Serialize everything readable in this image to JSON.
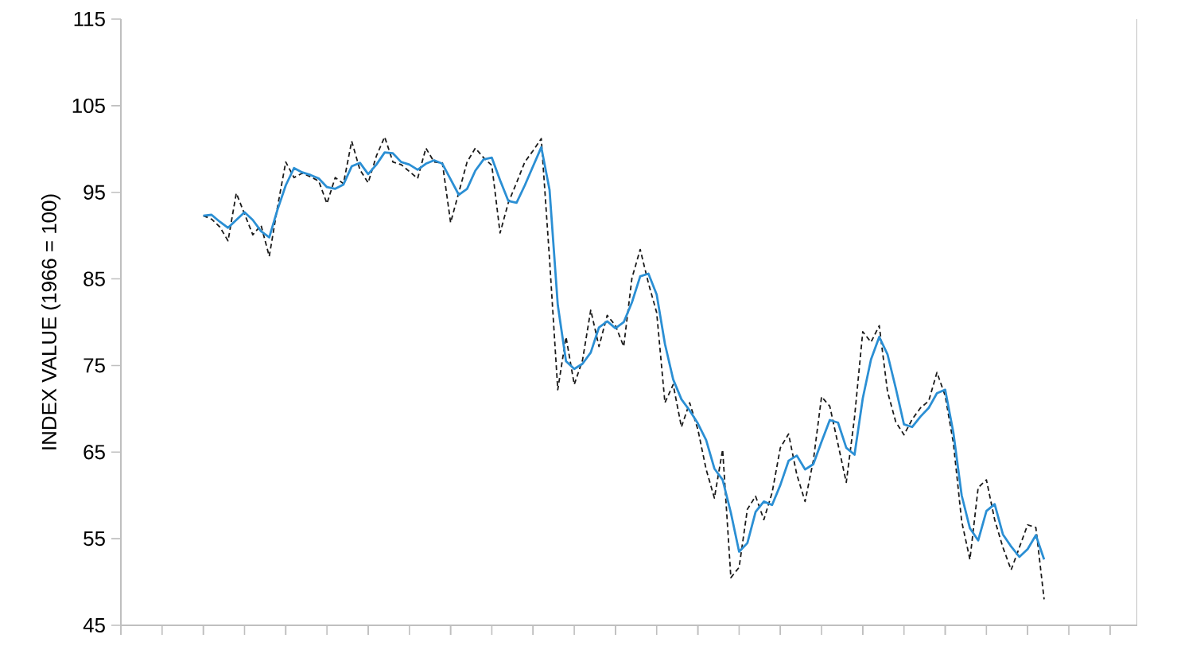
{
  "chart_data": {
    "type": "line",
    "ylabel": "INDEX VALUE (1966 = 100)",
    "ylim": [
      45,
      115
    ],
    "yticks": [
      45,
      55,
      65,
      75,
      85,
      95,
      105,
      115
    ],
    "categories": [
      null,
      null,
      null,
      null,
      null,
      null,
      null,
      null,
      null,
      null,
      null,
      null,
      null,
      null,
      null,
      null,
      null,
      null,
      null,
      null,
      null,
      null,
      null,
      null,
      null,
      null,
      null,
      null,
      null,
      null,
      null,
      null,
      null,
      null,
      null,
      null,
      null,
      null,
      null,
      null,
      null,
      null,
      null,
      null,
      null,
      null,
      null,
      null,
      null,
      null,
      null,
      null,
      null,
      null,
      null,
      null,
      null,
      null,
      null,
      null,
      null,
      null,
      null,
      null,
      null,
      null,
      null,
      null,
      null,
      null,
      null,
      null,
      null,
      null,
      null,
      null,
      null,
      null,
      null,
      null,
      null,
      null,
      null,
      null,
      null,
      null,
      null,
      null,
      null,
      null,
      null,
      null,
      null,
      null,
      null,
      null,
      null,
      null,
      null,
      null,
      null,
      null,
      null
    ],
    "grid": false,
    "series": [
      {
        "color": "#1a1a1a",
        "line_style": "dashed",
        "values": [
          92.3,
          91.9,
          91.0,
          89.4,
          94.9,
          92.5,
          90.1,
          91.2,
          87.6,
          93.3,
          98.5,
          96.7,
          97.2,
          96.8,
          96.3,
          93.7,
          96.7,
          96.0,
          100.9,
          97.6,
          96.1,
          99.2,
          101.4,
          98.5,
          98.2,
          97.4,
          96.6,
          100.1,
          98.5,
          98.4,
          91.5,
          95.0,
          98.5,
          100.1,
          99.0,
          98.1,
          90.3,
          93.8,
          96.1,
          98.5,
          99.8,
          101.2,
          87.3,
          72.2,
          78.3,
          72.8,
          75.6,
          81.4,
          77.2,
          80.8,
          79.6,
          77.2,
          85.1,
          88.4,
          84.5,
          81.1,
          70.7,
          72.8,
          67.9,
          70.7,
          67.6,
          63.0,
          59.7,
          65.3,
          50.5,
          51.7,
          58.4,
          59.9,
          57.2,
          60.3,
          65.5,
          67.1,
          62.4,
          59.3,
          64.0,
          71.4,
          70.3,
          65.9,
          61.5,
          69.0,
          78.9,
          77.7,
          79.6,
          72.0,
          68.5,
          67.0,
          68.8,
          70.1,
          70.9,
          74.2,
          71.5,
          66.0,
          57.0,
          52.6,
          60.9,
          61.8,
          57.2,
          54.0,
          51.4,
          54.0,
          56.6,
          56.3,
          48.0
        ]
      },
      {
        "color": "#2b8fd4",
        "line_style": "solid",
        "values": [
          92.3,
          92.4,
          91.6,
          90.9,
          91.8,
          92.7,
          91.8,
          90.5,
          89.8,
          93.0,
          95.8,
          97.8,
          97.3,
          97.0,
          96.6,
          95.6,
          95.4,
          95.9,
          98.0,
          98.4,
          97.1,
          98.2,
          99.6,
          99.5,
          98.5,
          98.2,
          97.6,
          98.3,
          98.7,
          98.3,
          96.5,
          94.7,
          95.4,
          97.5,
          98.8,
          99.0,
          96.4,
          94.0,
          93.8,
          95.8,
          98.0,
          100.2,
          95.3,
          82.0,
          75.5,
          74.6,
          75.2,
          76.5,
          79.4,
          80.1,
          79.3,
          80.0,
          82.3,
          85.3,
          85.6,
          83.2,
          77.5,
          73.4,
          71.1,
          69.8,
          68.3,
          66.4,
          63.1,
          61.8,
          58.0,
          53.5,
          54.5,
          58.1,
          59.3,
          58.9,
          61.2,
          64.0,
          64.6,
          63.0,
          63.6,
          66.2,
          68.7,
          68.4,
          65.5,
          64.7,
          71.2,
          75.7,
          78.3,
          76.3,
          72.4,
          68.2,
          67.9,
          69.1,
          70.1,
          71.8,
          72.2,
          67.2,
          60.0,
          56.2,
          54.8,
          58.2,
          59.0,
          55.5,
          54.1,
          52.9,
          53.8,
          55.4,
          52.6
        ]
      }
    ]
  }
}
